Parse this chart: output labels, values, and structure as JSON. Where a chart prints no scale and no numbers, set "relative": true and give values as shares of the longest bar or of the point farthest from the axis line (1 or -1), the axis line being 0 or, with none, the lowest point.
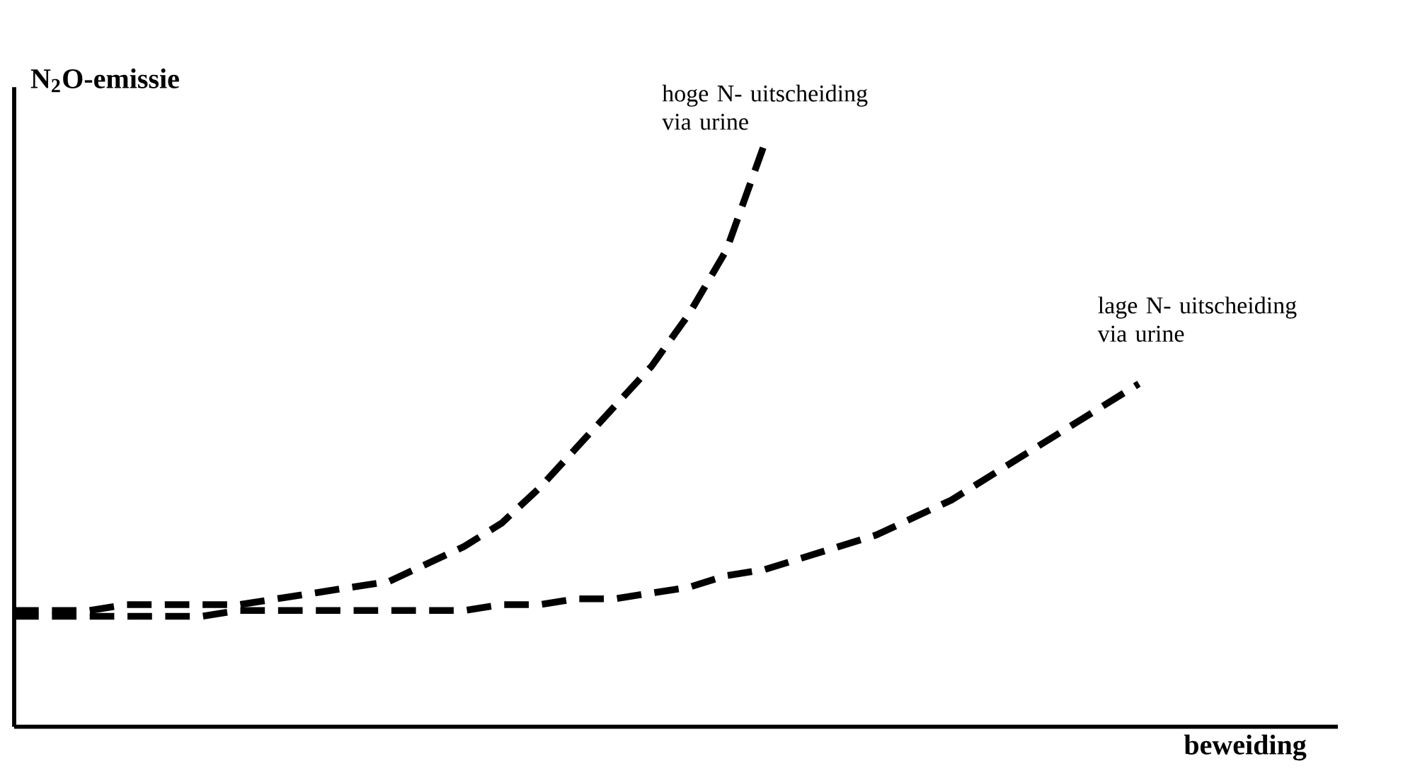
{
  "chart_data": {
    "type": "line",
    "relative": true,
    "line_style": "dashed",
    "ylabel": "N$_{2}$O-emissie",
    "xlabel": "beweiding",
    "categories": [
      null,
      null,
      null,
      null,
      null,
      null,
      null,
      null,
      null,
      null,
      null,
      null,
      null,
      null,
      null,
      null,
      null,
      null,
      null,
      null,
      null,
      null,
      null,
      null,
      null,
      null,
      null,
      null,
      null,
      null,
      null,
      null,
      null,
      null,
      null,
      null
    ],
    "series": [
      {
        "name": "hoge N- uitscheiding via urine",
        "color": "#000000",
        "values": [
          0.2,
          0.2,
          0.2,
          0.21,
          0.21,
          0.21,
          0.21,
          0.22,
          0.23,
          0.24,
          0.25,
          0.28,
          0.31,
          0.35,
          0.41,
          0.48,
          0.55,
          0.62,
          0.71,
          0.82,
          1,
          null,
          null,
          null,
          null,
          null,
          null,
          null,
          null,
          null,
          null,
          null,
          null,
          null,
          null,
          null
        ]
      },
      {
        "name": "lage N- uitscheiding via urine",
        "color": "#000000",
        "values": [
          0.19,
          0.19,
          0.19,
          0.19,
          0.19,
          0.19,
          0.2,
          0.2,
          0.2,
          0.2,
          0.2,
          0.2,
          0.2,
          0.21,
          0.21,
          0.22,
          0.22,
          0.23,
          0.24,
          0.26,
          0.27,
          0.29,
          0.31,
          0.33,
          0.36,
          0.39,
          0.43,
          0.47,
          0.51,
          0.55,
          0.59,
          null,
          null,
          null,
          null,
          null
        ]
      }
    ]
  }
}
